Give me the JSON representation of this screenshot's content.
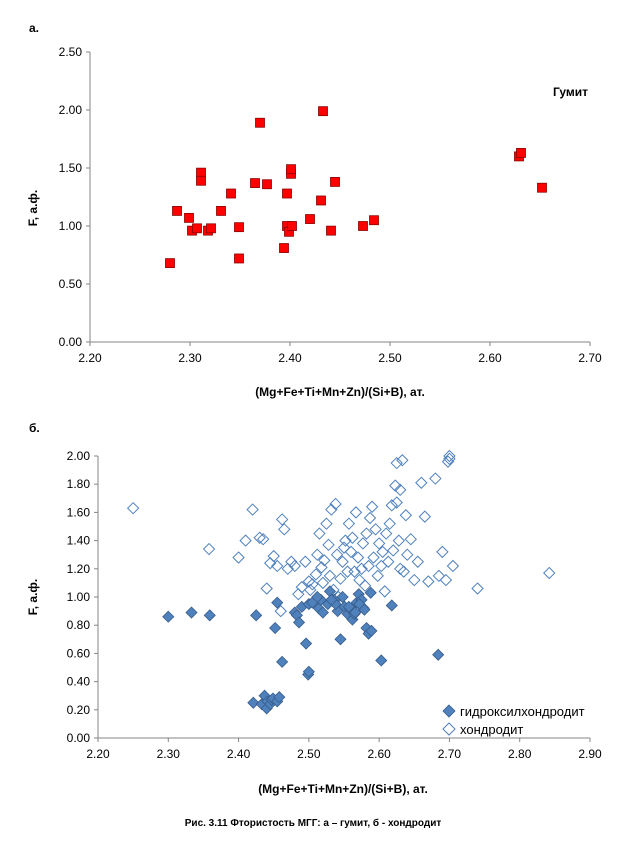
{
  "caption": "Рис. 3.11 Фтористость МГГ: а – гумит, б - хондродит",
  "chart_data": [
    {
      "type": "scatter",
      "panel_label": "а.",
      "title": "Гумит",
      "xlabel": "(Mg+Fe+Ti+Mn+Zn)/(Si+B), ат.",
      "ylabel": "F, а.ф.",
      "xlim": [
        2.2,
        2.7
      ],
      "ylim": [
        0.0,
        2.5
      ],
      "xticks": [
        "2.20",
        "2.30",
        "2.40",
        "2.50",
        "2.60",
        "2.70"
      ],
      "yticks": [
        "0.00",
        "0.50",
        "1.00",
        "1.50",
        "2.00",
        "2.50"
      ],
      "grid": false,
      "series": [
        {
          "marker": "square",
          "color": "#ff0000",
          "x": [
            2.28,
            2.287,
            2.299,
            2.302,
            2.307,
            2.311,
            2.311,
            2.318,
            2.321,
            2.331,
            2.341,
            2.349,
            2.349,
            2.365,
            2.37,
            2.377,
            2.394,
            2.397,
            2.397,
            2.399,
            2.401,
            2.401,
            2.402,
            2.42,
            2.431,
            2.433,
            2.441,
            2.445,
            2.473,
            2.484,
            2.629,
            2.631,
            2.652
          ],
          "y": [
            0.68,
            1.13,
            1.07,
            0.96,
            0.98,
            1.46,
            1.39,
            0.96,
            0.98,
            1.13,
            1.28,
            0.72,
            0.99,
            1.37,
            1.89,
            1.36,
            0.81,
            1.0,
            1.28,
            0.95,
            1.45,
            1.49,
            1.0,
            1.06,
            1.22,
            1.99,
            0.96,
            1.38,
            1.0,
            1.05,
            1.6,
            1.63,
            1.33
          ]
        }
      ]
    },
    {
      "type": "scatter",
      "panel_label": "б.",
      "title": "",
      "xlabel": "(Mg+Fe+Ti+Mn+Zn)/(Si+B), ат.",
      "ylabel": "F, а.ф.",
      "xlim": [
        2.2,
        2.9
      ],
      "ylim": [
        0.0,
        2.0
      ],
      "xticks": [
        "2.20",
        "2.30",
        "2.40",
        "2.50",
        "2.60",
        "2.70",
        "2.80",
        "2.90"
      ],
      "yticks": [
        "0.00",
        "0.20",
        "0.40",
        "0.60",
        "0.80",
        "1.00",
        "1.20",
        "1.40",
        "1.60",
        "1.80",
        "2.00"
      ],
      "grid": false,
      "legend_position": "bottom-right",
      "series": [
        {
          "name": "гидроксилхондродит",
          "marker": "diamond-filled",
          "color": "#4f81bd",
          "x": [
            2.3,
            2.333,
            2.359,
            2.421,
            2.425,
            2.433,
            2.437,
            2.44,
            2.441,
            2.445,
            2.447,
            2.449,
            2.452,
            2.455,
            2.458,
            2.462,
            2.48,
            2.483,
            2.486,
            2.49,
            2.496,
            2.499,
            2.5,
            2.5,
            2.505,
            2.514,
            2.517,
            2.52,
            2.527,
            2.53,
            2.536,
            2.541,
            2.545,
            2.551,
            2.555,
            2.558,
            2.562,
            2.565,
            2.568,
            2.571,
            2.575,
            2.578,
            2.582,
            2.585,
            2.589,
            2.603,
            2.618,
            2.684,
            2.538,
            2.548,
            2.557,
            2.566,
            2.572,
            2.579,
            2.588,
            2.455,
            2.512,
            2.532
          ],
          "y": [
            0.86,
            0.89,
            0.87,
            0.25,
            0.87,
            0.24,
            0.3,
            0.21,
            0.26,
            0.24,
            0.27,
            0.28,
            0.78,
            0.26,
            0.29,
            0.54,
            0.89,
            0.87,
            0.82,
            0.93,
            0.67,
            0.45,
            0.47,
            0.95,
            0.96,
            0.92,
            0.98,
            0.89,
            0.95,
            1.04,
            0.98,
            0.9,
            0.7,
            0.93,
            0.88,
            0.92,
            0.84,
            0.88,
            0.96,
            1.02,
            0.98,
            0.92,
            0.78,
            0.74,
            0.76,
            0.55,
            0.94,
            0.59,
            0.95,
            1.0,
            0.93,
            0.89,
            0.95,
            0.91,
            1.03,
            0.96,
            1.0,
            0.98
          ]
        },
        {
          "name": "хондродит",
          "marker": "diamond-open",
          "color": "#4f81bd",
          "x": [
            2.25,
            2.358,
            2.4,
            2.41,
            2.42,
            2.43,
            2.435,
            2.44,
            2.445,
            2.45,
            2.455,
            2.46,
            2.462,
            2.465,
            2.47,
            2.475,
            2.48,
            2.485,
            2.49,
            2.495,
            2.5,
            2.502,
            2.505,
            2.51,
            2.512,
            2.515,
            2.518,
            2.52,
            2.522,
            2.525,
            2.528,
            2.53,
            2.532,
            2.535,
            2.538,
            2.54,
            2.542,
            2.545,
            2.548,
            2.55,
            2.552,
            2.555,
            2.557,
            2.56,
            2.562,
            2.565,
            2.567,
            2.57,
            2.572,
            2.575,
            2.577,
            2.58,
            2.582,
            2.585,
            2.587,
            2.59,
            2.592,
            2.595,
            2.598,
            2.6,
            2.603,
            2.605,
            2.608,
            2.61,
            2.613,
            2.615,
            2.618,
            2.62,
            2.623,
            2.625,
            2.628,
            2.63,
            2.633,
            2.635,
            2.638,
            2.64,
            2.645,
            2.65,
            2.655,
            2.66,
            2.665,
            2.67,
            2.68,
            2.685,
            2.69,
            2.695,
            2.7,
            2.705,
            2.74,
            2.842,
            2.625,
            2.63,
            2.698,
            2.7
          ],
          "y": [
            1.63,
            1.34,
            1.28,
            1.4,
            1.62,
            1.42,
            1.41,
            1.06,
            1.24,
            1.29,
            1.22,
            0.9,
            1.55,
            1.48,
            1.2,
            1.25,
            1.22,
            1.02,
            1.07,
            1.25,
            1.11,
            1.05,
            1.09,
            1.16,
            1.3,
            1.45,
            1.21,
            1.1,
            1.26,
            1.52,
            1.37,
            1.15,
            1.62,
            1.05,
            1.66,
            1.3,
            1.0,
            1.13,
            1.25,
            1.35,
            1.4,
            1.18,
            1.52,
            1.32,
            1.42,
            1.18,
            1.6,
            1.28,
            1.12,
            1.2,
            1.38,
            1.08,
            1.45,
            1.22,
            1.56,
            1.64,
            1.28,
            1.48,
            1.15,
            1.38,
            1.22,
            1.32,
            1.04,
            1.45,
            1.25,
            1.52,
            1.65,
            1.33,
            1.79,
            1.95,
            1.4,
            1.2,
            1.97,
            1.18,
            1.58,
            1.3,
            1.41,
            1.12,
            1.25,
            1.81,
            1.57,
            1.11,
            1.84,
            1.15,
            1.32,
            1.12,
            1.98,
            1.22,
            1.06,
            1.17,
            1.67,
            1.76,
            1.96,
            2.0
          ]
        }
      ]
    }
  ]
}
